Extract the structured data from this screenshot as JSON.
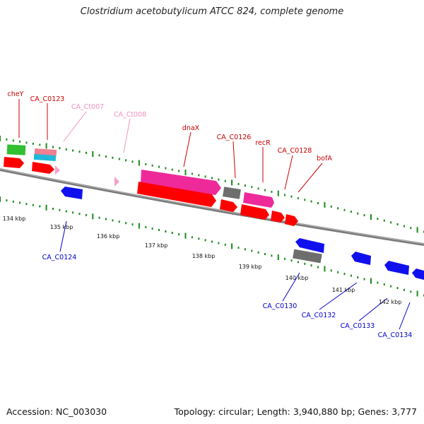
{
  "title": "Clostridium acetobutylicum ATCC 824, complete genome",
  "footer": {
    "accession": "Accession: NC_003030",
    "summary": "Topology: circular; Length: 3,940,880 bp; Genes: 3,777"
  },
  "colors": {
    "gene_red": "#ff0000",
    "gene_blue": "#1010ee",
    "gene_pink": "#ee2a9a",
    "gene_gray": "#6e6e6e",
    "gene_green": "#30c030",
    "gene_cyan": "#20b8d8",
    "gene_salmon": "#f07f8f",
    "gene_lightpink": "#f4a0cc",
    "label_red": "#cc0000",
    "label_blue": "#0000cc",
    "label_pink": "#f090c0",
    "tick_green": "#1a8a1a",
    "backbone": "#7a7a7a"
  },
  "scale_labels": [
    "134 kbp",
    "135 kbp",
    "136 kbp",
    "137 kbp",
    "138 kbp",
    "139 kbp",
    "140 kbp",
    "141 kbp",
    "142 kbp"
  ],
  "gene_labels": {
    "cheY": "cheY",
    "CA_C0123": "CA_C0123",
    "CA_Ct007": "CA_Ct007",
    "CA_Ct008": "CA_Ct008",
    "dnaX": "dnaX",
    "CA_C0126": "CA_C0126",
    "recR": "recR",
    "CA_C0128": "CA_C0128",
    "bofA": "bofA",
    "CA_C0124": "CA_C0124",
    "CA_C0130": "CA_C0130",
    "CA_C0132": "CA_C0132",
    "CA_C0133": "CA_C0133",
    "CA_C0134": "CA_C0134"
  }
}
